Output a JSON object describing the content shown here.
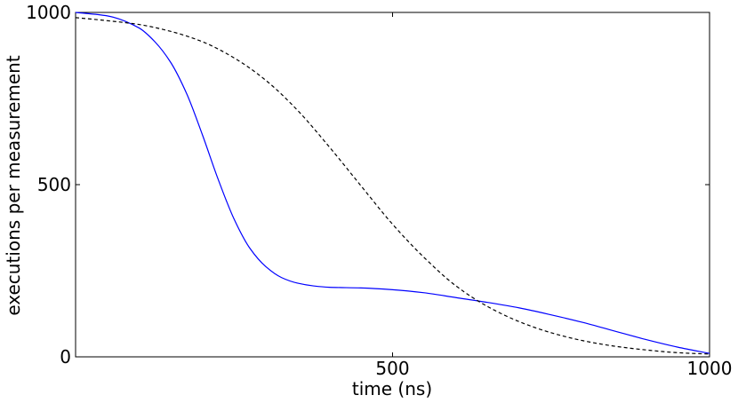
{
  "chart_data": {
    "type": "line",
    "xlabel": "time (ns)",
    "ylabel": "executions per measurement",
    "xlim": [
      0,
      1000
    ],
    "ylim": [
      0,
      1000
    ],
    "grid": false,
    "x_ticks": [
      {
        "value": 0,
        "label": ""
      },
      {
        "value": 500,
        "label": "500"
      },
      {
        "value": 1000,
        "label": "1000"
      }
    ],
    "y_ticks": [
      {
        "value": 0,
        "label": "0"
      },
      {
        "value": 500,
        "label": "500"
      },
      {
        "value": 1000,
        "label": "1000"
      }
    ],
    "series": [
      {
        "color": "#0000ff",
        "style": "solid",
        "x": [
          0,
          50,
          100,
          125,
          150,
          175,
          200,
          225,
          250,
          275,
          300,
          325,
          350,
          375,
          400,
          450,
          500,
          550,
          600,
          650,
          700,
          750,
          800,
          850,
          900,
          950,
          1000
        ],
        "y": [
          1000,
          990,
          955,
          915,
          855,
          765,
          645,
          515,
          400,
          315,
          262,
          230,
          214,
          206,
          202,
          200,
          195,
          186,
          172,
          158,
          142,
          122,
          100,
          75,
          50,
          28,
          10
        ]
      },
      {
        "color": "#000000",
        "style": "dashed",
        "x": [
          0,
          50,
          100,
          150,
          200,
          250,
          300,
          350,
          400,
          450,
          500,
          550,
          600,
          650,
          700,
          750,
          800,
          850,
          900,
          950,
          1000
        ],
        "y": [
          985,
          976,
          965,
          945,
          915,
          868,
          803,
          716,
          610,
          497,
          385,
          288,
          206,
          146,
          102,
          70,
          47,
          31,
          20,
          12,
          8
        ]
      }
    ]
  }
}
